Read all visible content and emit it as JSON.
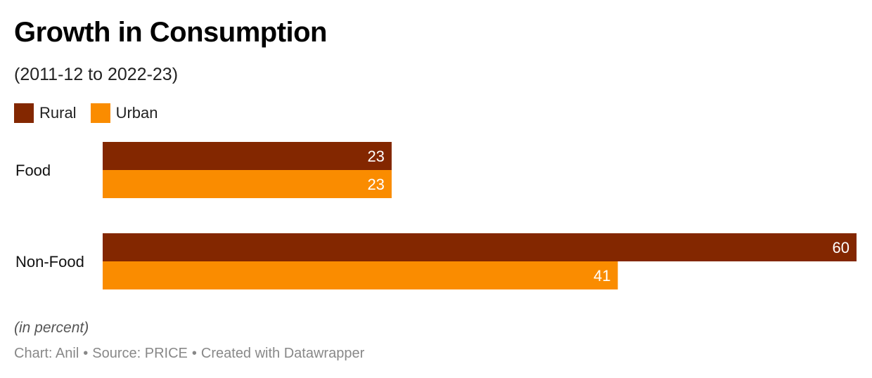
{
  "title": "Growth in Consumption",
  "subtitle": "(2011-12 to 2022-23)",
  "legend": [
    {
      "label": "Rural",
      "color": "#832700"
    },
    {
      "label": "Urban",
      "color": "#fa8c00"
    }
  ],
  "chart_data": {
    "type": "bar",
    "orientation": "horizontal",
    "categories": [
      "Food",
      "Non-Food"
    ],
    "series": [
      {
        "name": "Rural",
        "values": [
          23,
          60
        ],
        "color": "#832700"
      },
      {
        "name": "Urban",
        "values": [
          23,
          41
        ],
        "color": "#fa8c00"
      }
    ],
    "xlim": [
      0,
      60
    ],
    "grid": false,
    "data_labels": true,
    "legend_position": "top-left"
  },
  "note": "(in percent)",
  "credit": {
    "chart": "Chart: Anil",
    "source": "Source: PRICE",
    "created": "Created with Datawrapper"
  }
}
